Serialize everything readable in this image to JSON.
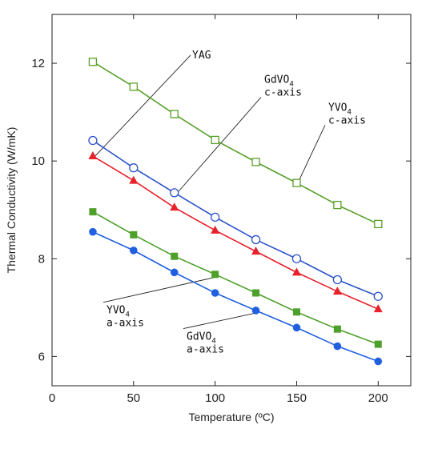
{
  "chart_data": {
    "type": "line",
    "title": "",
    "xlabel": "Temperature (ºC)",
    "ylabel": "Thermal Conductivity (W/mK)",
    "xlim": [
      0,
      220
    ],
    "ylim": [
      5.4,
      13
    ],
    "xticks": [
      "0",
      "50",
      "100",
      "150",
      "200"
    ],
    "yticks": [
      "6",
      "8",
      "10",
      "12"
    ],
    "grid": false,
    "legend": "none",
    "x": [
      25,
      50,
      75,
      100,
      125,
      150,
      175,
      200
    ],
    "series": [
      {
        "name": "YAG",
        "values": [
          10.1,
          9.6,
          9.05,
          8.58,
          8.15,
          7.72,
          7.33,
          6.97
        ],
        "color": "#e8212a",
        "marker": "filled-triangle"
      },
      {
        "name": "GdVO4 c-axis",
        "values": [
          10.42,
          9.86,
          9.35,
          8.85,
          8.39,
          8.0,
          7.57,
          7.23
        ],
        "color": "#2b53c8",
        "marker": "open-circle"
      },
      {
        "name": "YVO4 c-axis",
        "values": [
          12.03,
          11.52,
          10.96,
          10.43,
          9.98,
          9.55,
          9.1,
          8.71
        ],
        "color": "#5aa02c",
        "marker": "open-square"
      },
      {
        "name": "YVO4 a-axis",
        "values": [
          8.96,
          8.49,
          8.05,
          7.68,
          7.3,
          6.91,
          6.56,
          6.25
        ],
        "color": "#4da02a",
        "marker": "filled-square"
      },
      {
        "name": "GdVO4 a-axis",
        "values": [
          8.55,
          8.17,
          7.72,
          7.3,
          6.94,
          6.59,
          6.21,
          5.9
        ],
        "color": "#1f5fe0",
        "marker": "filled-circle"
      }
    ],
    "annotations": [
      {
        "series": 0,
        "lines": [
          "YAG"
        ],
        "sub": null,
        "point_x": 25,
        "point_y": 10.05,
        "label_x": 240,
        "label_y": 12.1,
        "anchor": "start"
      },
      {
        "series": 1,
        "lines": [
          "GdVO",
          "c-axis"
        ],
        "sub": "4",
        "point_x": 75,
        "point_y": 9.28,
        "label_x": 330,
        "label_y": 11.6,
        "anchor": "start"
      },
      {
        "series": 2,
        "lines": [
          "YVO",
          "c-axis"
        ],
        "sub": "4",
        "point_x": 150,
        "point_y": 9.5,
        "label_x": 410,
        "label_y": 11.03,
        "anchor": "start"
      },
      {
        "series": 3,
        "lines": [
          "YVO",
          "a-axis"
        ],
        "sub": "4",
        "point_x": 100,
        "point_y": 7.62,
        "label_x": 133,
        "label_y": 6.88,
        "anchor": "start"
      },
      {
        "series": 4,
        "lines": [
          "GdVO",
          "a-axis"
        ],
        "sub": "4",
        "point_x": 125,
        "point_y": 6.89,
        "label_x": 233,
        "label_y": 6.34,
        "anchor": "start"
      }
    ]
  }
}
